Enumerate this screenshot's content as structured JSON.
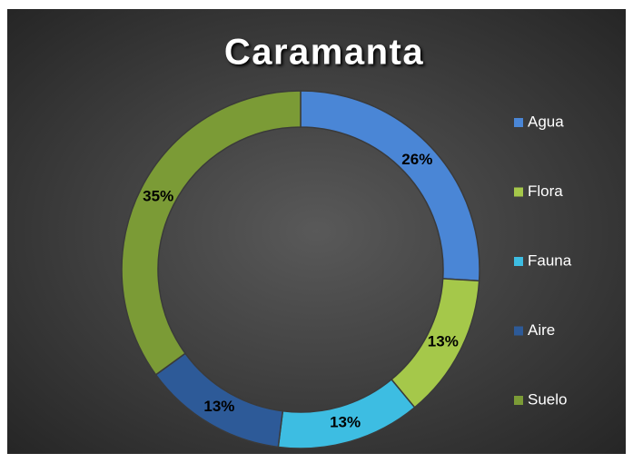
{
  "chart_data": {
    "type": "pie",
    "title": "Caramanta",
    "categories": [
      "Agua",
      "Flora",
      "Fauna",
      "Aire",
      "Suelo"
    ],
    "values": [
      26,
      13,
      13,
      13,
      35
    ],
    "value_labels": [
      "26%",
      "13%",
      "13%",
      "13%",
      "35%"
    ],
    "colors": [
      "#4a86d6",
      "#a5c84a",
      "#3dbde2",
      "#2d5a98",
      "#7b9b36"
    ],
    "legend": "right"
  }
}
